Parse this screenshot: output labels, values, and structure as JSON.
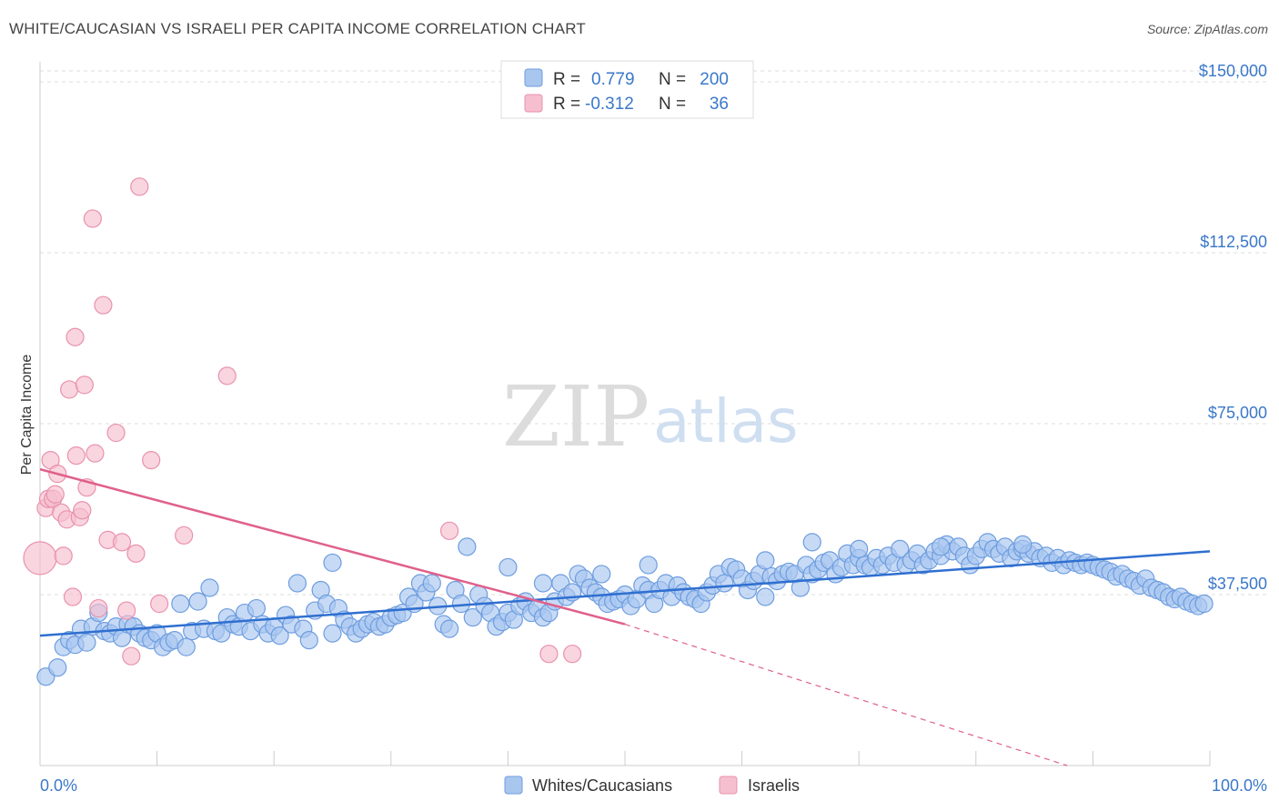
{
  "title": "WHITE/CAUCASIAN VS ISRAELI PER CAPITA INCOME CORRELATION CHART",
  "source": "Source: ZipAtlas.com",
  "watermark": {
    "zip": "ZIP",
    "atlas": "atlas"
  },
  "colors": {
    "blue_fill": "#a9c6ef",
    "blue_stroke": "#6d9ddf",
    "blue_line": "#2f6fd0",
    "pink_fill": "#f6bfd0",
    "pink_stroke": "#e992ad",
    "pink_line": "#e0608a",
    "grid": "#dddddd",
    "axis_text": "#3a78c9"
  },
  "legend": {
    "rows": [
      {
        "r_label": "R =",
        "r_value": "0.779",
        "n_label": "N =",
        "n_value": "200",
        "swatch": "blue"
      },
      {
        "r_label": "R =",
        "r_value": "-0.312",
        "n_label": "N =",
        "n_value": "36",
        "swatch": "pink"
      }
    ]
  },
  "bottom_legend": [
    {
      "label": "Whites/Caucasians",
      "swatch": "blue"
    },
    {
      "label": "Israelis",
      "swatch": "pink"
    }
  ],
  "chart_data": {
    "type": "scatter",
    "title": "WHITE/CAUCASIAN VS ISRAELI PER CAPITA INCOME CORRELATION CHART",
    "xlabel": "",
    "ylabel": "Per Capita Income",
    "xlim": [
      0,
      100
    ],
    "ylim": [
      0,
      152000
    ],
    "x_tick_labels": [
      "0.0%",
      "100.0%"
    ],
    "y_ticks": [
      37500,
      75000,
      112500,
      150000
    ],
    "y_tick_labels": [
      "$37,500",
      "$75,000",
      "$112,500",
      "$150,000"
    ],
    "grid": true,
    "legend_position": "top-center",
    "series": [
      {
        "name": "Whites/Caucasians",
        "color": "#a9c6ef",
        "r": 0.779,
        "n": 200,
        "trend": {
          "x": [
            0,
            100
          ],
          "y": [
            28500,
            47000
          ]
        },
        "points": [
          [
            0.5,
            19500
          ],
          [
            1.5,
            21500
          ],
          [
            2,
            26000
          ],
          [
            2.5,
            27500
          ],
          [
            3,
            26500
          ],
          [
            3.5,
            30000
          ],
          [
            4,
            27000
          ],
          [
            4.5,
            30500
          ],
          [
            5,
            33500
          ],
          [
            5.5,
            29500
          ],
          [
            6,
            29000
          ],
          [
            6.5,
            30500
          ],
          [
            7,
            28000
          ],
          [
            7.5,
            31000
          ],
          [
            8,
            30500
          ],
          [
            8.5,
            29000
          ],
          [
            9,
            28000
          ],
          [
            9.5,
            27500
          ],
          [
            10,
            29000
          ],
          [
            10.5,
            26000
          ],
          [
            11,
            27000
          ],
          [
            11.5,
            27500
          ],
          [
            12,
            35500
          ],
          [
            12.5,
            26000
          ],
          [
            13,
            29500
          ],
          [
            13.5,
            36000
          ],
          [
            14,
            30000
          ],
          [
            14.5,
            39000
          ],
          [
            15,
            29500
          ],
          [
            15.5,
            29000
          ],
          [
            16,
            32500
          ],
          [
            16.5,
            31000
          ],
          [
            17,
            30500
          ],
          [
            17.5,
            33500
          ],
          [
            18,
            29500
          ],
          [
            18.5,
            34500
          ],
          [
            19,
            31000
          ],
          [
            19.5,
            29000
          ],
          [
            20,
            30500
          ],
          [
            20.5,
            28500
          ],
          [
            21,
            33000
          ],
          [
            21.5,
            31000
          ],
          [
            22,
            40000
          ],
          [
            22.5,
            30000
          ],
          [
            23,
            27500
          ],
          [
            23.5,
            34000
          ],
          [
            24,
            38500
          ],
          [
            24.5,
            35500
          ],
          [
            25,
            29000
          ],
          [
            25.5,
            34500
          ],
          [
            26,
            32000
          ],
          [
            26.5,
            30500
          ],
          [
            27,
            29000
          ],
          [
            27.5,
            30000
          ],
          [
            28,
            31000
          ],
          [
            28.5,
            31500
          ],
          [
            29,
            30500
          ],
          [
            29.5,
            31000
          ],
          [
            30,
            32500
          ],
          [
            30.5,
            33000
          ],
          [
            31,
            33500
          ],
          [
            31.5,
            37000
          ],
          [
            32,
            35500
          ],
          [
            32.5,
            40000
          ],
          [
            33,
            38000
          ],
          [
            33.5,
            40000
          ],
          [
            34,
            35000
          ],
          [
            34.5,
            31000
          ],
          [
            35,
            30000
          ],
          [
            35.5,
            38500
          ],
          [
            36,
            35500
          ],
          [
            36.5,
            48000
          ],
          [
            37,
            32500
          ],
          [
            37.5,
            37500
          ],
          [
            38,
            35000
          ],
          [
            38.5,
            33500
          ],
          [
            39,
            30500
          ],
          [
            39.5,
            31500
          ],
          [
            40,
            33500
          ],
          [
            40.5,
            32000
          ],
          [
            41,
            35000
          ],
          [
            41.5,
            36000
          ],
          [
            42,
            33500
          ],
          [
            42.5,
            34500
          ],
          [
            43,
            32500
          ],
          [
            43.5,
            33500
          ],
          [
            44,
            36000
          ],
          [
            44.5,
            40000
          ],
          [
            45,
            37000
          ],
          [
            45.5,
            38000
          ],
          [
            46,
            42000
          ],
          [
            46.5,
            41000
          ],
          [
            47,
            39000
          ],
          [
            47.5,
            38000
          ],
          [
            48,
            37000
          ],
          [
            48.5,
            35500
          ],
          [
            49,
            36000
          ],
          [
            49.5,
            36500
          ],
          [
            50,
            37500
          ],
          [
            50.5,
            35000
          ],
          [
            51,
            36500
          ],
          [
            51.5,
            39500
          ],
          [
            52,
            38500
          ],
          [
            52.5,
            35500
          ],
          [
            53,
            38500
          ],
          [
            53.5,
            40000
          ],
          [
            54,
            37000
          ],
          [
            54.5,
            39500
          ],
          [
            55,
            38000
          ],
          [
            55.5,
            37000
          ],
          [
            56,
            36500
          ],
          [
            56.5,
            35500
          ],
          [
            57,
            38000
          ],
          [
            57.5,
            39500
          ],
          [
            58,
            42000
          ],
          [
            58.5,
            40000
          ],
          [
            59,
            43500
          ],
          [
            59.5,
            43000
          ],
          [
            60,
            41000
          ],
          [
            60.5,
            38500
          ],
          [
            61,
            40500
          ],
          [
            61.5,
            42000
          ],
          [
            62,
            37000
          ],
          [
            62.5,
            41500
          ],
          [
            63,
            40500
          ],
          [
            63.5,
            42000
          ],
          [
            64,
            42500
          ],
          [
            64.5,
            42000
          ],
          [
            65,
            39000
          ],
          [
            65.5,
            44000
          ],
          [
            66,
            42000
          ],
          [
            66.5,
            43000
          ],
          [
            67,
            44500
          ],
          [
            67.5,
            45000
          ],
          [
            68,
            42000
          ],
          [
            68.5,
            43500
          ],
          [
            69,
            46500
          ],
          [
            69.5,
            44000
          ],
          [
            70,
            45500
          ],
          [
            70.5,
            44000
          ],
          [
            71,
            43500
          ],
          [
            71.5,
            45500
          ],
          [
            72,
            44000
          ],
          [
            72.5,
            46000
          ],
          [
            73,
            44500
          ],
          [
            73.5,
            47500
          ],
          [
            74,
            44000
          ],
          [
            74.5,
            45000
          ],
          [
            75,
            46500
          ],
          [
            75.5,
            44000
          ],
          [
            76,
            45000
          ],
          [
            76.5,
            47000
          ],
          [
            77,
            46000
          ],
          [
            77.5,
            48500
          ],
          [
            78,
            47000
          ],
          [
            78.5,
            48000
          ],
          [
            79,
            46000
          ],
          [
            79.5,
            44000
          ],
          [
            80,
            46000
          ],
          [
            80.5,
            47500
          ],
          [
            81,
            49000
          ],
          [
            81.5,
            47500
          ],
          [
            82,
            46500
          ],
          [
            82.5,
            48000
          ],
          [
            83,
            45500
          ],
          [
            83.5,
            47000
          ],
          [
            84,
            47500
          ],
          [
            84.5,
            46500
          ],
          [
            85,
            47000
          ],
          [
            85.5,
            45500
          ],
          [
            86,
            46000
          ],
          [
            86.5,
            44500
          ],
          [
            87,
            45500
          ],
          [
            87.5,
            44000
          ],
          [
            88,
            45000
          ],
          [
            88.5,
            44500
          ],
          [
            89,
            44000
          ],
          [
            89.5,
            44500
          ],
          [
            90,
            44000
          ],
          [
            90.5,
            43500
          ],
          [
            91,
            43000
          ],
          [
            91.5,
            42500
          ],
          [
            92,
            41500
          ],
          [
            92.5,
            42000
          ],
          [
            93,
            41000
          ],
          [
            93.5,
            40500
          ],
          [
            94,
            39500
          ],
          [
            94.5,
            41000
          ],
          [
            95,
            39000
          ],
          [
            95.5,
            38500
          ],
          [
            96,
            38000
          ],
          [
            96.5,
            37000
          ],
          [
            97,
            36500
          ],
          [
            97.5,
            37000
          ],
          [
            98,
            36000
          ],
          [
            98.5,
            35500
          ],
          [
            99,
            35000
          ],
          [
            99.5,
            35500
          ],
          [
            25,
            44500
          ],
          [
            40,
            43500
          ],
          [
            43,
            40000
          ],
          [
            48,
            42000
          ],
          [
            52,
            44000
          ],
          [
            66,
            49000
          ],
          [
            70,
            47500
          ],
          [
            77,
            48000
          ],
          [
            84,
            48500
          ],
          [
            62,
            45000
          ]
        ]
      },
      {
        "name": "Israelis",
        "color": "#f6bfd0",
        "r": -0.312,
        "n": 36,
        "trend": {
          "x": [
            0,
            50
          ],
          "y": [
            65000,
            31000
          ],
          "dashed_to": [
            100,
            -10000
          ]
        },
        "points": [
          [
            0,
            45500
          ],
          [
            0.5,
            56500
          ],
          [
            0.7,
            58500
          ],
          [
            0.9,
            67000
          ],
          [
            1.1,
            58500
          ],
          [
            1.3,
            59500
          ],
          [
            1.5,
            64000
          ],
          [
            1.8,
            55500
          ],
          [
            2,
            46000
          ],
          [
            2.3,
            54000
          ],
          [
            2.5,
            82500
          ],
          [
            2.8,
            37000
          ],
          [
            3,
            94000
          ],
          [
            3.1,
            68000
          ],
          [
            3.4,
            54500
          ],
          [
            3.6,
            56000
          ],
          [
            3.8,
            83500
          ],
          [
            4,
            61000
          ],
          [
            4.5,
            120000
          ],
          [
            4.7,
            68500
          ],
          [
            5,
            34500
          ],
          [
            5.4,
            101000
          ],
          [
            5.8,
            49500
          ],
          [
            6.5,
            73000
          ],
          [
            7,
            49000
          ],
          [
            7.4,
            34000
          ],
          [
            7.8,
            24000
          ],
          [
            8.2,
            46500
          ],
          [
            8.5,
            127000
          ],
          [
            9.5,
            67000
          ],
          [
            10.2,
            35500
          ],
          [
            12.3,
            50500
          ],
          [
            16,
            85500
          ],
          [
            35,
            51500
          ],
          [
            43.5,
            24500
          ],
          [
            45.5,
            24500
          ]
        ]
      }
    ]
  }
}
